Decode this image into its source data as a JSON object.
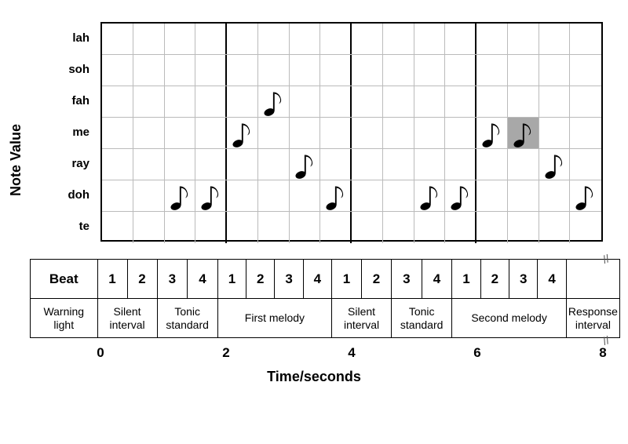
{
  "yAxis": {
    "label": "Note Value"
  },
  "xAxis": {
    "label": "Time/seconds"
  },
  "rows": [
    "lah",
    "soh",
    "fah",
    "me",
    "ray",
    "doh",
    "te"
  ],
  "grid": {
    "cols": 16,
    "cellSize": 40,
    "thickDividersAfter": [
      4,
      8,
      12
    ],
    "borderColor": "#000000",
    "gridlineColor": "#bbbbbb",
    "highlightColor": "#a8a8a8",
    "backgroundColor": "#ffffff"
  },
  "notes": [
    {
      "col": 3,
      "row": "doh",
      "highlighted": false
    },
    {
      "col": 4,
      "row": "doh",
      "highlighted": false
    },
    {
      "col": 5,
      "row": "me",
      "highlighted": false
    },
    {
      "col": 6,
      "row": "fah",
      "highlighted": false
    },
    {
      "col": 7,
      "row": "ray",
      "highlighted": false
    },
    {
      "col": 8,
      "row": "doh",
      "highlighted": false
    },
    {
      "col": 11,
      "row": "doh",
      "highlighted": false
    },
    {
      "col": 12,
      "row": "doh",
      "highlighted": false
    },
    {
      "col": 13,
      "row": "me",
      "highlighted": false
    },
    {
      "col": 14,
      "row": "me",
      "highlighted": true
    },
    {
      "col": 15,
      "row": "ray",
      "highlighted": false
    },
    {
      "col": 16,
      "row": "doh",
      "highlighted": false
    }
  ],
  "beatRow": {
    "label": "Beat",
    "values": [
      "1",
      "2",
      "3",
      "4",
      "1",
      "2",
      "3",
      "4",
      "1",
      "2",
      "3",
      "4",
      "1",
      "2",
      "3",
      "4"
    ]
  },
  "phases": [
    {
      "label": "Warning light",
      "span": 0,
      "isHeader": true
    },
    {
      "label": "Silent interval",
      "span": 2
    },
    {
      "label": "Tonic standard",
      "span": 2
    },
    {
      "label": "First melody",
      "span": 4
    },
    {
      "label": "Silent interval",
      "span": 2
    },
    {
      "label": "Tonic standard",
      "span": 2
    },
    {
      "label": "Second melody",
      "span": 4
    },
    {
      "label": "Response interval",
      "span": 0,
      "isResponse": true
    }
  ],
  "timeTicks": [
    {
      "value": "0",
      "colPos": 0
    },
    {
      "value": "2",
      "colPos": 4
    },
    {
      "value": "4",
      "colPos": 8
    },
    {
      "value": "6",
      "colPos": 12
    },
    {
      "value": "8",
      "colPos": 16
    }
  ],
  "colors": {
    "text": "#000000",
    "background": "#ffffff"
  },
  "noteSvg": {
    "fill": "#000000"
  }
}
